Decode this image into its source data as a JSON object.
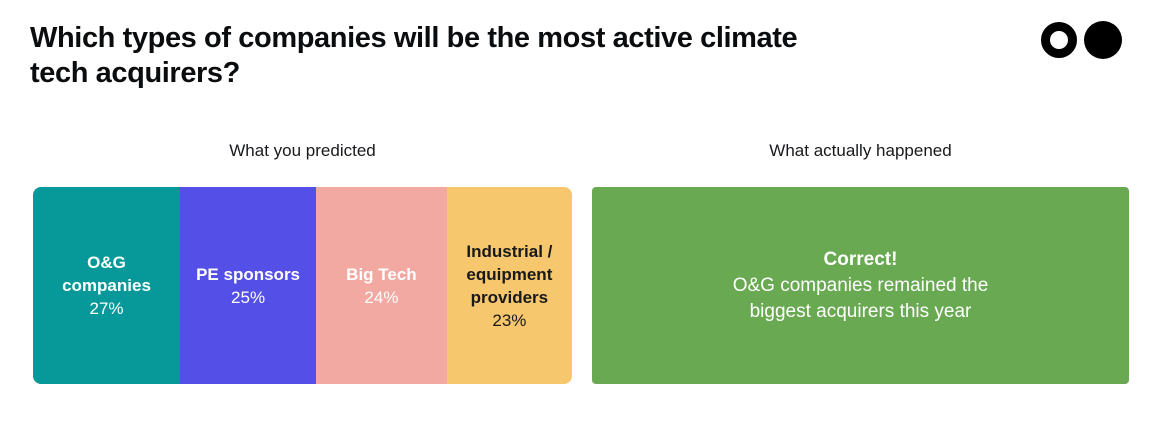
{
  "header": {
    "title": "Which types of companies will be the most active climate tech acquirers?"
  },
  "logo": {
    "left_mark": "ring-circle",
    "right_mark": "filled-circle",
    "color": "#000000"
  },
  "predicted": {
    "label": "What you predicted",
    "segments": [
      {
        "name": "O&G companies",
        "pct": "27%",
        "value": 27,
        "color": "#07999A",
        "text_color": "#FFFFFF"
      },
      {
        "name": "PE sponsors",
        "pct": "25%",
        "value": 25,
        "color": "#544FE6",
        "text_color": "#FFFFFF"
      },
      {
        "name": "Big Tech",
        "pct": "24%",
        "value": 24,
        "color": "#F2A9A2",
        "text_color": "#FFFFFF"
      },
      {
        "name": "Industrial / equipment providers",
        "pct": "23%",
        "value": 23,
        "color": "#F6C76C",
        "text_color": "#18191B"
      }
    ]
  },
  "actual": {
    "label": "What actually happened",
    "result_title": "Correct!",
    "result_text": "O&G companies remained the biggest acquirers this year",
    "color": "#69A952",
    "text_color": "#FFFFFF"
  },
  "chart_data": {
    "type": "bar",
    "subtype": "stacked-percentage-bar",
    "orientation": "horizontal",
    "title": "Which types of companies will be the most active climate tech acquirers?",
    "group_labels": [
      "What you predicted",
      "What actually happened"
    ],
    "categories": [
      "O&G companies",
      "PE sponsors",
      "Big Tech",
      "Industrial / equipment providers"
    ],
    "values": [
      27,
      25,
      24,
      23
    ],
    "unit": "%",
    "colors": [
      "#07999A",
      "#544FE6",
      "#F2A9A2",
      "#F6C76C"
    ],
    "annotation": {
      "title": "Correct!",
      "text": "O&G companies remained the biggest acquirers this year",
      "color": "#69A952"
    },
    "axes": "none",
    "grid": false,
    "legend": "labels-inside-segments"
  }
}
